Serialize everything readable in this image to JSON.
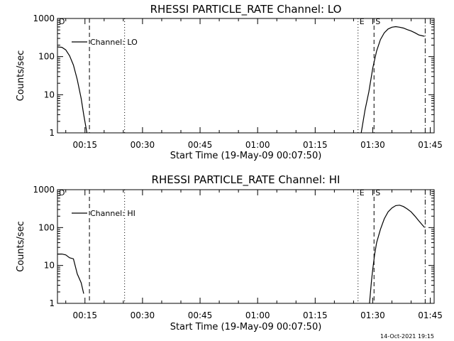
{
  "footer": {
    "timestamp": "14-Oct-2021 19:15"
  },
  "chart_data": [
    {
      "type": "line",
      "title": "RHESSI PARTICLE_RATE Channel: LO",
      "xlabel": "Start Time (19-May-09 00:07:50)",
      "ylabel": "Counts/sec",
      "y_scale": "log",
      "ylim": [
        1,
        1000
      ],
      "xlim": [
        "00:07:50",
        "01:46:00"
      ],
      "x_ticks": [
        "00:15",
        "00:30",
        "00:45",
        "01:00",
        "01:15",
        "01:30",
        "01:45"
      ],
      "y_ticks": [
        "1",
        "10",
        "100",
        "1000"
      ],
      "legend": {
        "position": "top-left",
        "entries": [
          "Channel: LO"
        ]
      },
      "series": [
        {
          "name": "Channel: LO",
          "segments": [
            [
              [
                "00:07:50",
                180
              ],
              [
                "00:09:00",
                175
              ],
              [
                "00:10:00",
                150
              ],
              [
                "00:11:00",
                105
              ],
              [
                "00:12:00",
                60
              ],
              [
                "00:13:00",
                25
              ],
              [
                "00:14:00",
                8
              ],
              [
                "00:14:40",
                3
              ],
              [
                "00:15:30",
                1
              ]
            ],
            [
              [
                "01:27:00",
                1
              ],
              [
                "01:28:00",
                4
              ],
              [
                "01:29:00",
                12
              ],
              [
                "01:30:00",
                50
              ],
              [
                "01:31:00",
                140
              ],
              [
                "01:32:00",
                280
              ],
              [
                "01:33:00",
                420
              ],
              [
                "01:34:00",
                530
              ],
              [
                "01:35:00",
                590
              ],
              [
                "01:36:00",
                610
              ],
              [
                "01:37:00",
                590
              ],
              [
                "01:38:00",
                560
              ],
              [
                "01:39:00",
                510
              ],
              [
                "01:40:00",
                470
              ],
              [
                "01:41:00",
                420
              ],
              [
                "01:42:00",
                370
              ],
              [
                "01:43:00",
                350
              ],
              [
                "01:43:30",
                340
              ]
            ]
          ]
        }
      ],
      "markers": [
        {
          "type": "dash",
          "x": "00:16:10",
          "label": ""
        },
        {
          "type": "dot",
          "x": "00:25:20",
          "label": ""
        },
        {
          "type": "dot",
          "x": "01:26:10",
          "label": "E"
        },
        {
          "type": "dash",
          "x": "01:30:20",
          "label": "S"
        },
        {
          "type": "dashdot",
          "x": "01:43:40",
          "label": ""
        }
      ],
      "corner_label": "D"
    },
    {
      "type": "line",
      "title": "RHESSI PARTICLE_RATE Channel: HI",
      "xlabel": "Start Time (19-May-09 00:07:50)",
      "ylabel": "Counts/sec",
      "y_scale": "log",
      "ylim": [
        1,
        1000
      ],
      "xlim": [
        "00:07:50",
        "01:46:00"
      ],
      "x_ticks": [
        "00:15",
        "00:30",
        "00:45",
        "01:00",
        "01:15",
        "01:30",
        "01:45"
      ],
      "y_ticks": [
        "1",
        "10",
        "100",
        "1000"
      ],
      "legend": {
        "position": "top-left",
        "entries": [
          "Channel: HI"
        ]
      },
      "series": [
        {
          "name": "Channel: HI",
          "segments": [
            [
              [
                "00:07:50",
                20
              ],
              [
                "00:09:00",
                20
              ],
              [
                "00:10:00",
                19
              ],
              [
                "00:11:00",
                16
              ],
              [
                "00:12:00",
                15
              ],
              [
                "00:13:00",
                6
              ],
              [
                "00:14:00",
                3.5
              ],
              [
                "00:14:40",
                1.8
              ]
            ],
            [
              [
                "01:29:10",
                1
              ],
              [
                "01:29:40",
                4
              ],
              [
                "01:30:00",
                8
              ],
              [
                "01:30:30",
                20
              ],
              [
                "01:31:00",
                40
              ],
              [
                "01:32:00",
                90
              ],
              [
                "01:33:00",
                170
              ],
              [
                "01:34:00",
                260
              ],
              [
                "01:35:00",
                330
              ],
              [
                "01:36:00",
                380
              ],
              [
                "01:37:00",
                390
              ],
              [
                "01:38:00",
                360
              ],
              [
                "01:39:00",
                310
              ],
              [
                "01:40:00",
                260
              ],
              [
                "01:41:00",
                200
              ],
              [
                "01:42:00",
                150
              ],
              [
                "01:43:00",
                115
              ],
              [
                "01:43:30",
                100
              ]
            ]
          ]
        }
      ],
      "markers": [
        {
          "type": "dash",
          "x": "00:16:10",
          "label": ""
        },
        {
          "type": "dot",
          "x": "00:25:20",
          "label": ""
        },
        {
          "type": "dot",
          "x": "01:26:10",
          "label": "E"
        },
        {
          "type": "dash",
          "x": "01:30:20",
          "label": "S"
        },
        {
          "type": "dashdot",
          "x": "01:43:40",
          "label": ""
        }
      ],
      "corner_label": "D"
    }
  ]
}
